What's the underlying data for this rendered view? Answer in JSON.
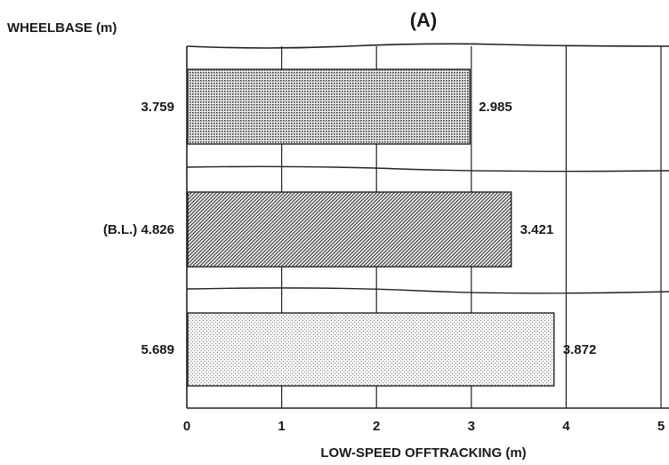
{
  "chart_data": {
    "type": "bar",
    "orientation": "horizontal",
    "title": "(A)",
    "ylabel": "WHEELBASE (m)",
    "xlabel": "LOW-SPEED OFFTRACKING (m)",
    "categories": [
      "3.759",
      "(B.L.) 4.826",
      "5.689"
    ],
    "values": [
      2.985,
      3.421,
      3.872
    ],
    "value_labels": [
      "2.985",
      "3.421",
      "3.872"
    ],
    "xlim": [
      0,
      5
    ],
    "x_ticks": [
      "0",
      "1",
      "2",
      "3",
      "4",
      "5"
    ],
    "grid": true,
    "bar_fills": [
      "dense-dot",
      "diagonal-hatch",
      "light-stipple"
    ]
  }
}
